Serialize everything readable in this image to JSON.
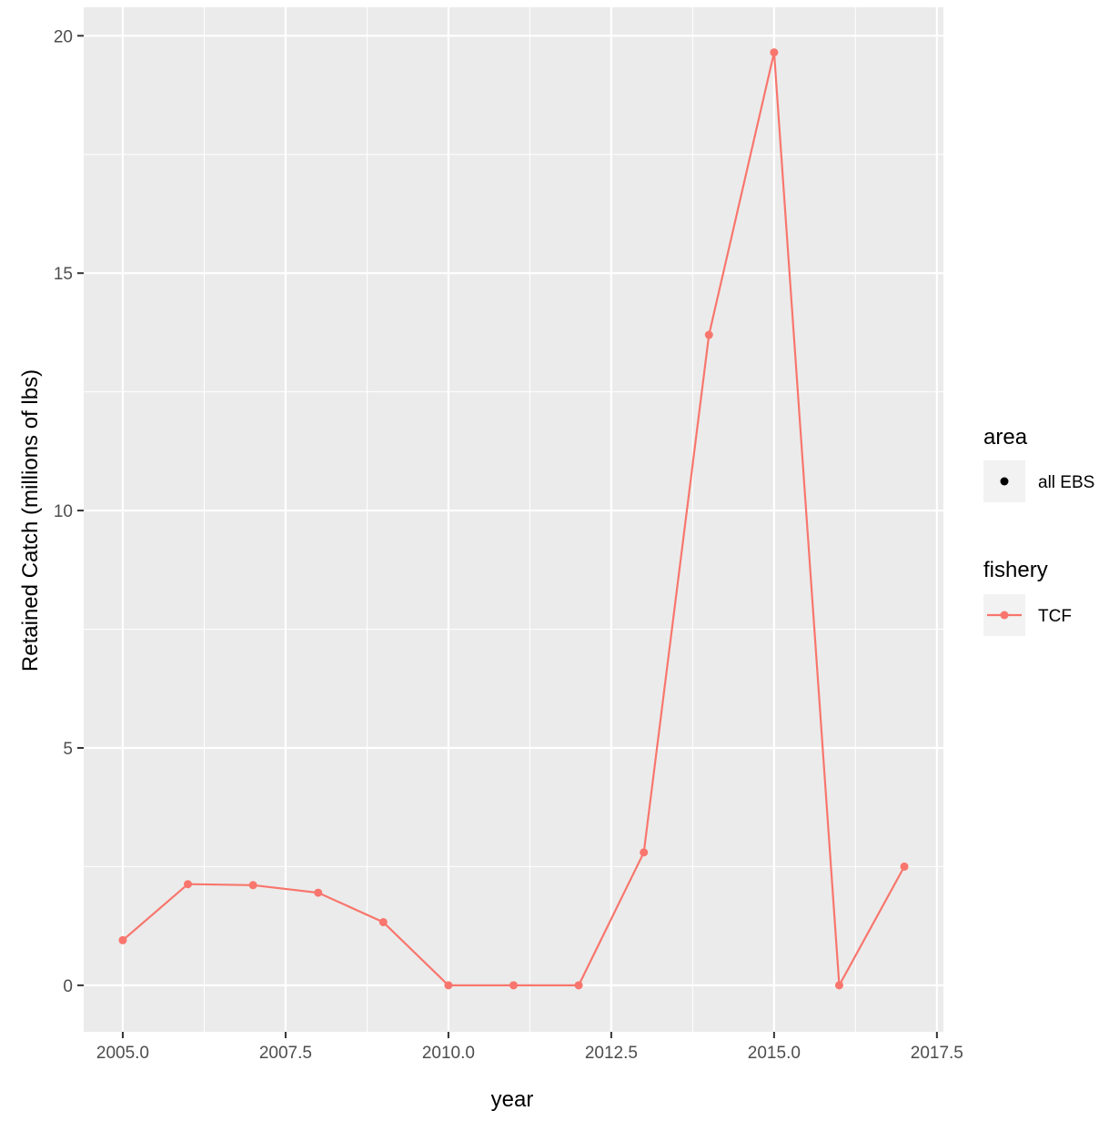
{
  "chart_data": {
    "type": "line",
    "xlabel": "year",
    "ylabel": "Retained Catch (millions of lbs)",
    "xlim": [
      2004.4,
      2017.6
    ],
    "ylim": [
      -0.98,
      20.6
    ],
    "x_ticks": [
      2005.0,
      2007.5,
      2010.0,
      2012.5,
      2015.0,
      2017.5
    ],
    "x_tick_labels": [
      "2005.0",
      "2007.5",
      "2010.0",
      "2012.5",
      "2015.0",
      "2017.5"
    ],
    "y_ticks": [
      0,
      5,
      10,
      15,
      20
    ],
    "y_tick_labels": [
      "0",
      "5",
      "10",
      "15",
      "20"
    ],
    "grid": true,
    "legend_position": "right",
    "colors": {
      "panel_background": "#ebebeb",
      "grid": "#ffffff",
      "series": "#f8766d",
      "shape_key": "#000000"
    },
    "legends": [
      {
        "title": "area",
        "entries": [
          {
            "label": "all EBS",
            "key": "point"
          }
        ]
      },
      {
        "title": "fishery",
        "entries": [
          {
            "label": "TCF",
            "key": "line-point"
          }
        ]
      }
    ],
    "series": [
      {
        "name": "TCF",
        "x": [
          2005,
          2006,
          2007,
          2008,
          2009,
          2010,
          2011,
          2012,
          2013,
          2014,
          2015,
          2016,
          2017
        ],
        "y": [
          0.95,
          2.13,
          2.11,
          1.95,
          1.33,
          0.0,
          0.0,
          0.0,
          2.8,
          13.7,
          19.65,
          0.0,
          2.5
        ]
      }
    ]
  }
}
